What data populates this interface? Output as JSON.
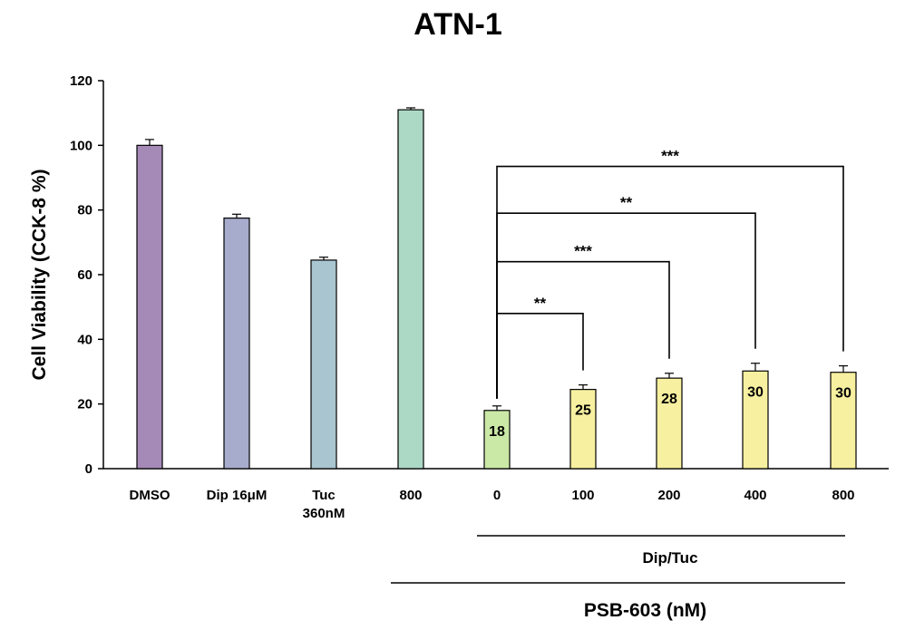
{
  "chart_data": {
    "type": "bar",
    "title": "ATN-1",
    "ylabel": "Cell Viability (CCK-8 %)",
    "xlabel": "",
    "ylim": [
      0,
      120
    ],
    "yticks": [
      0,
      20,
      40,
      60,
      80,
      100,
      120
    ],
    "grid": false,
    "categories": [
      [
        "DMSO"
      ],
      [
        "Dip 16μM"
      ],
      [
        "Tuc",
        "360nM"
      ],
      [
        "800"
      ],
      [
        "0"
      ],
      [
        "100"
      ],
      [
        "200"
      ],
      [
        "400"
      ],
      [
        "800"
      ]
    ],
    "values": [
      100,
      77.5,
      64.5,
      111,
      18,
      24.5,
      28,
      30.2,
      29.8
    ],
    "errors": [
      1.8,
      1.2,
      0.9,
      0.6,
      1.4,
      1.4,
      1.5,
      2.4,
      2.0
    ],
    "colors": [
      "#a58ab8",
      "#a7abcc",
      "#a9c6d0",
      "#acd9c6",
      "#cbe9a6",
      "#f7f0a0",
      "#f7f0a0",
      "#f7f0a0",
      "#f7f0a0"
    ],
    "data_labels": [
      "",
      "",
      "",
      "",
      "18",
      "25",
      "28",
      "30",
      "30"
    ],
    "significance": [
      {
        "from": 4,
        "to": 5,
        "label": "**",
        "level": 48
      },
      {
        "from": 4,
        "to": 6,
        "label": "***",
        "level": 64
      },
      {
        "from": 4,
        "to": 7,
        "label": "**",
        "level": 79
      },
      {
        "from": 4,
        "to": 8,
        "label": "***",
        "level": 93.5
      }
    ],
    "groups": [
      {
        "label": "Dip/Tuc",
        "from": 4,
        "to": 8
      },
      {
        "label": "PSB-603 (nM)",
        "from": 3,
        "to": 8
      }
    ]
  }
}
